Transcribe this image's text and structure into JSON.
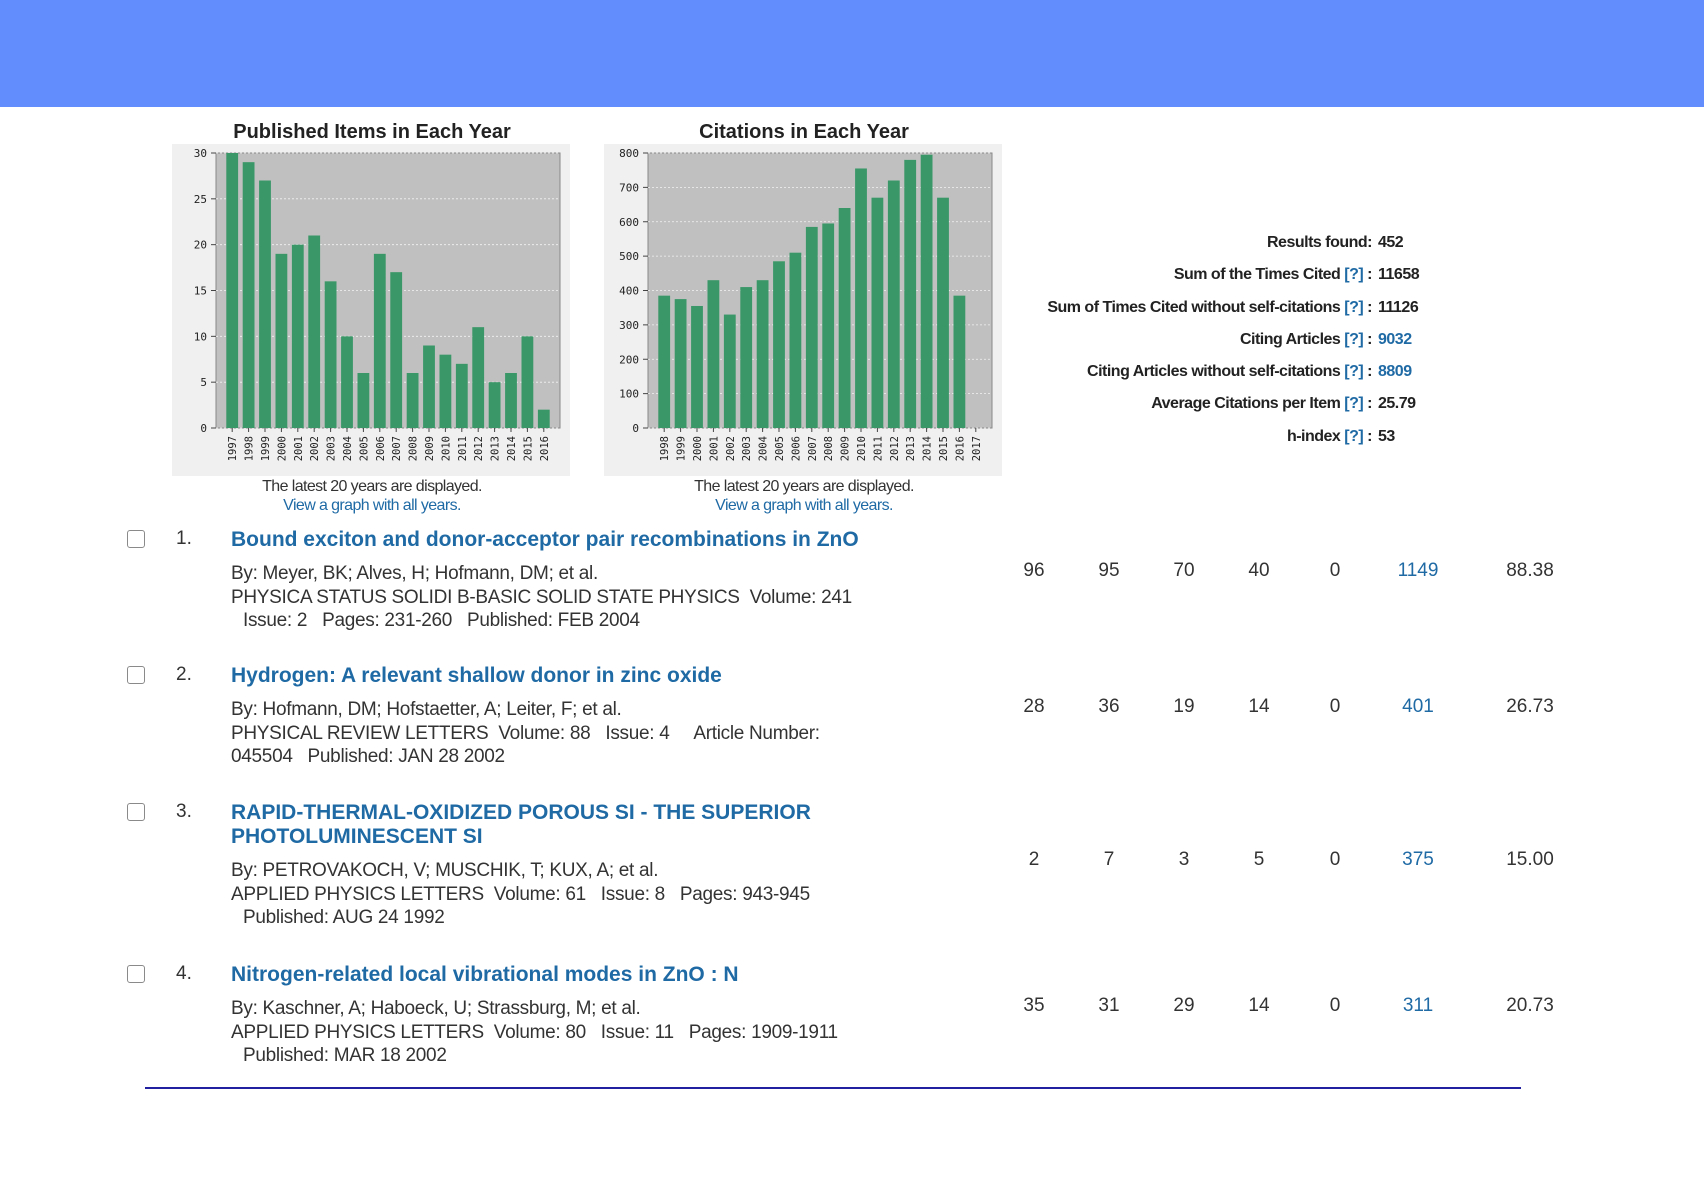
{
  "colors": {
    "header_band": "#628dfd",
    "bar": "#3a9868",
    "plot_bg": "#c0c0c0",
    "link": "#1f6aa5"
  },
  "charts": {
    "note_text": "The latest 20 years are displayed.",
    "link_text": "View a graph with all years."
  },
  "chart_data": [
    {
      "type": "bar",
      "title": "Published Items in Each Year",
      "categories": [
        "1997",
        "1998",
        "1999",
        "2000",
        "2001",
        "2002",
        "2003",
        "2004",
        "2005",
        "2006",
        "2007",
        "2008",
        "2009",
        "2010",
        "2011",
        "2012",
        "2013",
        "2014",
        "2015",
        "2016"
      ],
      "values": [
        30,
        29,
        27,
        19,
        20,
        21,
        16,
        10,
        6,
        19,
        17,
        6,
        9,
        8,
        7,
        11,
        5,
        6,
        10,
        2
      ],
      "ylim": [
        0,
        30
      ],
      "yticks": [
        0,
        5,
        10,
        15,
        20,
        25,
        30
      ],
      "grid": true
    },
    {
      "type": "bar",
      "title": "Citations in Each Year",
      "categories": [
        "1998",
        "1999",
        "2000",
        "2001",
        "2002",
        "2003",
        "2004",
        "2005",
        "2006",
        "2007",
        "2008",
        "2009",
        "2010",
        "2011",
        "2012",
        "2013",
        "2014",
        "2015",
        "2016",
        "2017"
      ],
      "values": [
        385,
        375,
        355,
        430,
        330,
        410,
        430,
        485,
        510,
        585,
        595,
        640,
        755,
        670,
        720,
        780,
        795,
        670,
        385,
        0
      ],
      "ylim": [
        0,
        800
      ],
      "yticks": [
        0,
        100,
        200,
        300,
        400,
        500,
        600,
        700,
        800
      ],
      "grid": true
    }
  ],
  "summary": [
    {
      "label": "Results found:",
      "help": "",
      "value": "452",
      "value_link": false
    },
    {
      "label": "Sum of the Times Cited",
      "help": "[?]",
      "value": "11658",
      "value_link": false
    },
    {
      "label": "Sum of Times Cited without self-citations",
      "help": "[?]",
      "value": "11126",
      "value_link": false
    },
    {
      "label": "Citing Articles",
      "help": "[?]",
      "value": "9032",
      "value_link": true
    },
    {
      "label": "Citing Articles without self-citations",
      "help": "[?]",
      "value": "8809",
      "value_link": true
    },
    {
      "label": "Average Citations per Item",
      "help": "[?]",
      "value": "25.79",
      "value_link": false
    },
    {
      "label": "h-index",
      "help": "[?]",
      "value": "53",
      "value_link": false
    }
  ],
  "records": [
    {
      "number": "1.",
      "title": [
        "Bound exciton and donor-acceptor pair recombinations in ZnO"
      ],
      "authors": "By: Meyer, BK; Alves, H; Hofmann, DM; et al.",
      "source_lines": [
        "PHYSICA STATUS SOLIDI B-BASIC SOLID STATE PHYSICS  Volume: 241",
        "Issue: 2   Pages: 231-260   Published: FEB 2004"
      ],
      "stats": [
        "96",
        "95",
        "70",
        "40",
        "0",
        "1149",
        "88.38"
      ]
    },
    {
      "number": "2.",
      "title": [
        "Hydrogen: A relevant shallow donor in zinc oxide"
      ],
      "authors": "By: Hofmann, DM; Hofstaetter, A; Leiter, F; et al.",
      "source_lines": [
        "PHYSICAL REVIEW LETTERS  Volume: 88   Issue: 4     Article Number:",
        "045504   Published: JAN 28 2002"
      ],
      "stats": [
        "28",
        "36",
        "19",
        "14",
        "0",
        "401",
        "26.73"
      ]
    },
    {
      "number": "3.",
      "title": [
        "RAPID-THERMAL-OXIDIZED POROUS SI - THE SUPERIOR",
        "PHOTOLUMINESCENT SI"
      ],
      "authors": "By: PETROVAKOCH, V; MUSCHIK, T; KUX, A; et al.",
      "source_lines": [
        "APPLIED PHYSICS LETTERS  Volume: 61   Issue: 8   Pages: 943-945",
        "Published: AUG 24 1992"
      ],
      "stats": [
        "2",
        "7",
        "3",
        "5",
        "0",
        "375",
        "15.00"
      ]
    },
    {
      "number": "4.",
      "title": [
        "Nitrogen-related local vibrational modes in ZnO : N"
      ],
      "authors": "By: Kaschner, A; Haboeck, U; Strassburg, M; et al.",
      "source_lines": [
        "APPLIED PHYSICS LETTERS  Volume: 80   Issue: 11   Pages: 1909-1911",
        "Published: MAR 18 2002"
      ],
      "stats": [
        "35",
        "31",
        "29",
        "14",
        "0",
        "311",
        "20.73"
      ]
    }
  ]
}
